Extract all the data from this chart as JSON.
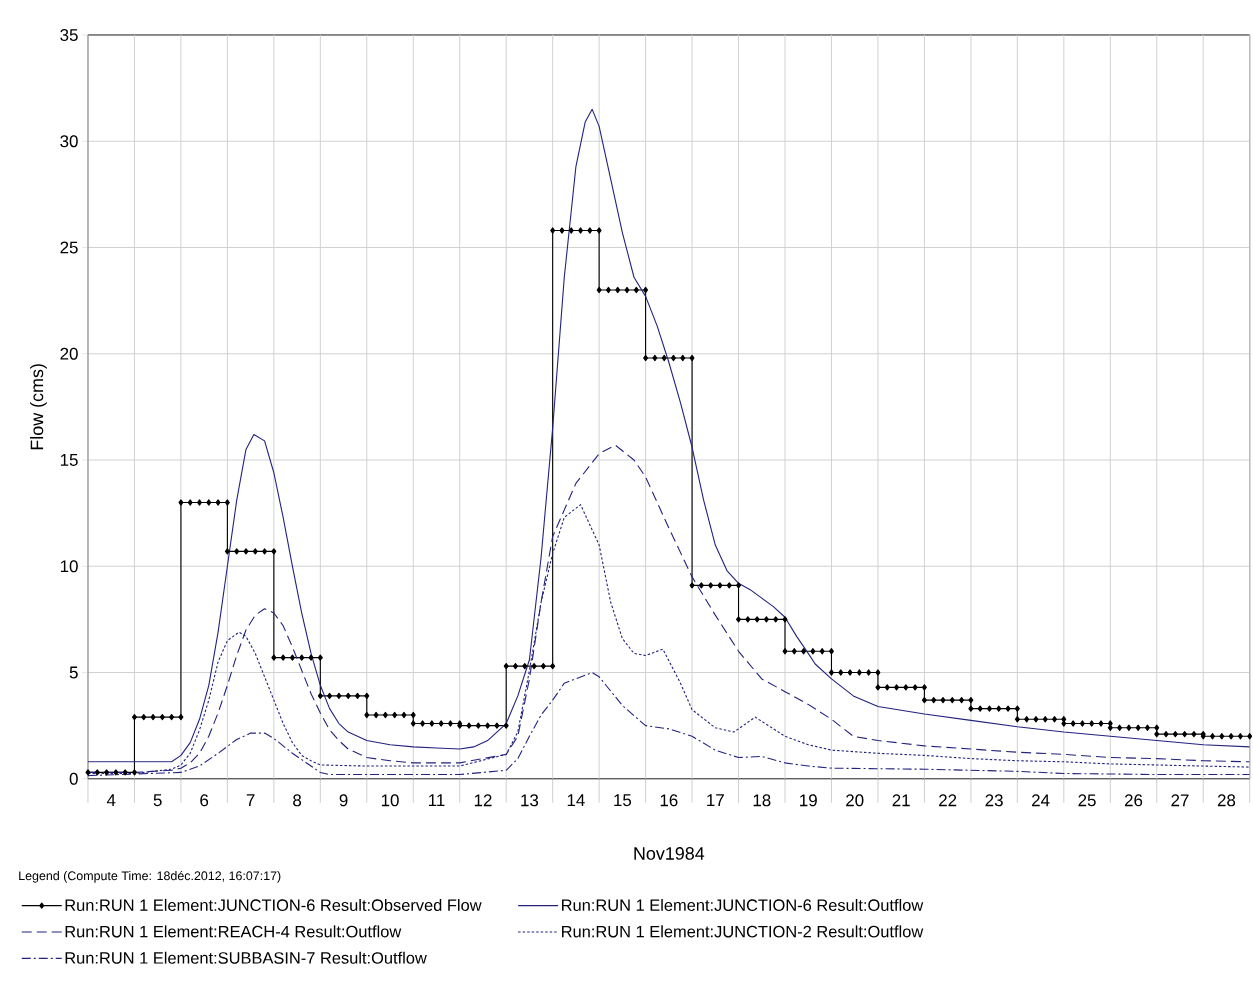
{
  "chart_data": {
    "type": "line",
    "xlabel": "Nov1984",
    "ylabel": "Flow (cms)",
    "legend_title": "Legend (Compute Time: 18déc.2012, 16:07:17)",
    "xlim": [
      4,
      29
    ],
    "ylim": [
      0,
      35
    ],
    "yticks": [
      0,
      5,
      10,
      15,
      20,
      25,
      30,
      35
    ],
    "xticks": [
      {
        "value": 4,
        "label": null
      },
      {
        "value": 4.5,
        "label": "4"
      },
      {
        "value": 5,
        "label": null
      },
      {
        "value": 5.5,
        "label": "5"
      },
      {
        "value": 6,
        "label": null
      },
      {
        "value": 6.5,
        "label": "6"
      },
      {
        "value": 7,
        "label": null
      },
      {
        "value": 7.5,
        "label": "7"
      },
      {
        "value": 8,
        "label": null
      },
      {
        "value": 8.5,
        "label": "8"
      },
      {
        "value": 9,
        "label": null
      },
      {
        "value": 9.5,
        "label": "9"
      },
      {
        "value": 10,
        "label": null
      },
      {
        "value": 10.5,
        "label": "10"
      },
      {
        "value": 11,
        "label": null
      },
      {
        "value": 11.5,
        "label": "11"
      },
      {
        "value": 12,
        "label": null
      },
      {
        "value": 12.5,
        "label": "12"
      },
      {
        "value": 13,
        "label": null
      },
      {
        "value": 13.5,
        "label": "13"
      },
      {
        "value": 14,
        "label": null
      },
      {
        "value": 14.5,
        "label": "14"
      },
      {
        "value": 15,
        "label": null
      },
      {
        "value": 15.5,
        "label": "15"
      },
      {
        "value": 16,
        "label": null
      },
      {
        "value": 16.5,
        "label": "16"
      },
      {
        "value": 17,
        "label": null
      },
      {
        "value": 17.5,
        "label": "17"
      },
      {
        "value": 18,
        "label": null
      },
      {
        "value": 18.5,
        "label": "18"
      },
      {
        "value": 19,
        "label": null
      },
      {
        "value": 19.5,
        "label": "19"
      },
      {
        "value": 20,
        "label": null
      },
      {
        "value": 20.5,
        "label": "20"
      },
      {
        "value": 21,
        "label": null
      },
      {
        "value": 21.5,
        "label": "21"
      },
      {
        "value": 22,
        "label": null
      },
      {
        "value": 22.5,
        "label": "22"
      },
      {
        "value": 23,
        "label": null
      },
      {
        "value": 23.5,
        "label": "23"
      },
      {
        "value": 24,
        "label": null
      },
      {
        "value": 24.5,
        "label": "24"
      },
      {
        "value": 25,
        "label": null
      },
      {
        "value": 25.5,
        "label": "25"
      },
      {
        "value": 26,
        "label": null
      },
      {
        "value": 26.5,
        "label": "26"
      },
      {
        "value": 27,
        "label": null
      },
      {
        "value": 27.5,
        "label": "27"
      },
      {
        "value": 28,
        "label": null
      },
      {
        "value": 28.5,
        "label": "28"
      },
      {
        "value": 29,
        "label": null
      }
    ],
    "grid": true,
    "legend": "bottom",
    "series": [
      {
        "name": "Run:RUN 1 Element:JUNCTION-6 Result:Observed Flow",
        "color": "#000000",
        "marker": "diamond",
        "line_style": "solid",
        "x": [
          4,
          4.2,
          4.4,
          4.6,
          4.8,
          5,
          5,
          5.2,
          5.4,
          5.6,
          5.8,
          6,
          6,
          6.2,
          6.4,
          6.6,
          6.8,
          7,
          7,
          7.2,
          7.4,
          7.6,
          7.8,
          8,
          8,
          8.2,
          8.4,
          8.6,
          8.8,
          9,
          9,
          9.2,
          9.4,
          9.6,
          9.8,
          10,
          10,
          10.2,
          10.4,
          10.6,
          10.8,
          11,
          11,
          11.2,
          11.4,
          11.6,
          11.8,
          12,
          12,
          12.2,
          12.4,
          12.6,
          12.8,
          13,
          13,
          13.2,
          13.4,
          13.6,
          13.8,
          14,
          14,
          14.2,
          14.4,
          14.6,
          14.8,
          15,
          15,
          15.2,
          15.4,
          15.6,
          15.8,
          16,
          16,
          16.2,
          16.4,
          16.6,
          16.8,
          17,
          17,
          17.2,
          17.4,
          17.6,
          17.8,
          18,
          18,
          18.2,
          18.4,
          18.6,
          18.8,
          19,
          19,
          19.2,
          19.4,
          19.6,
          19.8,
          20,
          20,
          20.2,
          20.4,
          20.6,
          20.8,
          21,
          21,
          21.2,
          21.4,
          21.6,
          21.8,
          22,
          22,
          22.2,
          22.4,
          22.6,
          22.8,
          23,
          23,
          23.2,
          23.4,
          23.6,
          23.8,
          24,
          24,
          24.2,
          24.4,
          24.6,
          24.8,
          25,
          25,
          25.2,
          25.4,
          25.6,
          25.8,
          26,
          26,
          26.2,
          26.4,
          26.6,
          26.8,
          27,
          27,
          27.2,
          27.4,
          27.6,
          27.8,
          28,
          28,
          28.2,
          28.4,
          28.6,
          28.8,
          29
        ],
        "values": [
          0.3,
          0.3,
          0.3,
          0.3,
          0.3,
          0.3,
          2.9,
          2.9,
          2.9,
          2.9,
          2.9,
          2.9,
          13.0,
          13.0,
          13.0,
          13.0,
          13.0,
          13.0,
          10.7,
          10.7,
          10.7,
          10.7,
          10.7,
          10.7,
          5.7,
          5.7,
          5.7,
          5.7,
          5.7,
          5.7,
          3.9,
          3.9,
          3.9,
          3.9,
          3.9,
          3.9,
          3.0,
          3.0,
          3.0,
          3.0,
          3.0,
          3.0,
          2.6,
          2.6,
          2.6,
          2.6,
          2.6,
          2.6,
          2.5,
          2.5,
          2.5,
          2.5,
          2.5,
          2.5,
          5.3,
          5.3,
          5.3,
          5.3,
          5.3,
          5.3,
          25.8,
          25.8,
          25.8,
          25.8,
          25.8,
          25.8,
          23.0,
          23.0,
          23.0,
          23.0,
          23.0,
          23.0,
          19.8,
          19.8,
          19.8,
          19.8,
          19.8,
          19.8,
          9.1,
          9.1,
          9.1,
          9.1,
          9.1,
          9.1,
          7.5,
          7.5,
          7.5,
          7.5,
          7.5,
          7.5,
          6.0,
          6.0,
          6.0,
          6.0,
          6.0,
          6.0,
          5.0,
          5.0,
          5.0,
          5.0,
          5.0,
          5.0,
          4.3,
          4.3,
          4.3,
          4.3,
          4.3,
          4.3,
          3.7,
          3.7,
          3.7,
          3.7,
          3.7,
          3.7,
          3.3,
          3.3,
          3.3,
          3.3,
          3.3,
          3.3,
          2.8,
          2.8,
          2.8,
          2.8,
          2.8,
          2.8,
          2.6,
          2.6,
          2.6,
          2.6,
          2.6,
          2.6,
          2.4,
          2.4,
          2.4,
          2.4,
          2.4,
          2.4,
          2.1,
          2.1,
          2.1,
          2.1,
          2.1,
          2.1,
          2.0,
          2.0,
          2.0,
          2.0,
          2.0,
          2.0
        ]
      },
      {
        "name": "Run:RUN 1 Element:JUNCTION-6 Result:Outflow",
        "color": "#22227f",
        "line_style": "solid",
        "x": [
          4,
          5,
          5.8,
          6,
          6.2,
          6.4,
          6.6,
          6.8,
          7,
          7.2,
          7.4,
          7.57,
          7.8,
          8,
          8.2,
          8.4,
          8.6,
          8.8,
          9,
          9.2,
          9.4,
          9.6,
          10,
          10.5,
          11,
          11.5,
          12,
          12.3,
          12.6,
          13,
          13.25,
          13.5,
          13.75,
          14,
          14.25,
          14.5,
          14.7,
          14.85,
          15,
          15.25,
          15.5,
          15.75,
          16,
          16.25,
          16.5,
          16.75,
          17,
          17.25,
          17.5,
          17.75,
          18,
          18.25,
          18.5,
          18.75,
          19,
          19.25,
          19.5,
          19.65,
          20,
          20.47,
          21,
          22,
          23,
          24,
          25,
          26,
          27,
          28,
          29
        ],
        "values": [
          0.8,
          0.8,
          0.8,
          1.1,
          1.7,
          2.8,
          4.4,
          6.9,
          10.0,
          13.1,
          15.5,
          16.2,
          15.9,
          14.4,
          12.3,
          10.0,
          7.8,
          5.9,
          4.4,
          3.3,
          2.6,
          2.2,
          1.8,
          1.6,
          1.5,
          1.45,
          1.4,
          1.5,
          1.8,
          2.6,
          3.9,
          5.6,
          10.4,
          16.5,
          23.6,
          28.8,
          30.9,
          31.5,
          30.7,
          28.2,
          25.7,
          23.6,
          22.7,
          21.3,
          19.6,
          17.7,
          15.6,
          13.1,
          11.0,
          9.8,
          9.2,
          8.9,
          8.5,
          8.1,
          7.6,
          6.7,
          5.9,
          5.4,
          4.7,
          3.9,
          3.4,
          3.05,
          2.75,
          2.45,
          2.2,
          2.0,
          1.8,
          1.6,
          1.5
        ]
      },
      {
        "name": "Run:RUN 1 Element:REACH-4 Result:Outflow",
        "color": "#22227f",
        "line_style": "dashed",
        "x": [
          4,
          5,
          5.8,
          6,
          6.2,
          6.4,
          6.6,
          6.8,
          7,
          7.2,
          7.4,
          7.6,
          7.8,
          8,
          8.2,
          8.4,
          8.6,
          8.8,
          9,
          9.2,
          9.4,
          9.6,
          10,
          10.5,
          11,
          12,
          13,
          13.25,
          13.5,
          13.75,
          14,
          14.5,
          15,
          15.35,
          15.75,
          16,
          16.5,
          17,
          17.5,
          18,
          18.5,
          19,
          19.5,
          20,
          20.47,
          21,
          22,
          23,
          24,
          25,
          26,
          27,
          28,
          29
        ],
        "values": [
          0.3,
          0.3,
          0.4,
          0.5,
          0.75,
          1.2,
          2.0,
          3.1,
          4.4,
          5.8,
          7.0,
          7.7,
          8.0,
          7.8,
          7.2,
          6.2,
          5.1,
          4.0,
          3.1,
          2.3,
          1.8,
          1.4,
          1.0,
          0.85,
          0.75,
          0.75,
          1.15,
          2.0,
          4.7,
          8.3,
          11.4,
          13.9,
          15.3,
          15.7,
          15.0,
          14.2,
          11.8,
          9.5,
          7.7,
          6.0,
          4.7,
          4.1,
          3.5,
          2.8,
          2.0,
          1.8,
          1.55,
          1.4,
          1.25,
          1.15,
          1.0,
          0.95,
          0.85,
          0.8
        ]
      },
      {
        "name": "Run:RUN 1 Element:JUNCTION-2 Result:Outflow",
        "color": "#22227f",
        "line_style": "dotted",
        "x": [
          4,
          5,
          5.8,
          6,
          6.2,
          6.4,
          6.6,
          6.8,
          7,
          7.25,
          7.4,
          7.6,
          7.8,
          8,
          8.2,
          8.4,
          8.6,
          8.8,
          9,
          10,
          12,
          13,
          13.25,
          13.5,
          13.75,
          14,
          14.25,
          14.6,
          15,
          15.25,
          15.5,
          15.75,
          16,
          16.37,
          16.75,
          17,
          17.5,
          17.9,
          18.36,
          19,
          19.5,
          20,
          21,
          22,
          23,
          24,
          25,
          26,
          27,
          28,
          29
        ],
        "values": [
          0.25,
          0.25,
          0.45,
          0.65,
          1.2,
          2.3,
          3.7,
          5.5,
          6.5,
          6.9,
          6.7,
          5.9,
          4.8,
          3.7,
          2.6,
          1.7,
          1.1,
          0.85,
          0.65,
          0.6,
          0.6,
          1.15,
          2.2,
          5.1,
          8.3,
          10.6,
          12.3,
          12.9,
          11.0,
          8.3,
          6.6,
          5.9,
          5.8,
          6.1,
          4.5,
          3.25,
          2.4,
          2.2,
          2.9,
          2.0,
          1.6,
          1.35,
          1.2,
          1.1,
          0.95,
          0.85,
          0.8,
          0.7,
          0.65,
          0.6,
          0.55
        ]
      },
      {
        "name": "Run:RUN 1 Element:SUBBASIN-7 Result:Outflow",
        "color": "#22227f",
        "line_style": "dashdot",
        "x": [
          4,
          6,
          6.4,
          6.8,
          7.2,
          7.5,
          7.8,
          8,
          8.4,
          8.8,
          9,
          9.2,
          12,
          13,
          13.25,
          13.5,
          13.75,
          14,
          14.25,
          14.85,
          15,
          15.5,
          16,
          16.5,
          17,
          17.5,
          18,
          18.5,
          19,
          19.5,
          20,
          22,
          23,
          24,
          25,
          27,
          29
        ],
        "values": [
          0.15,
          0.3,
          0.6,
          1.2,
          1.85,
          2.15,
          2.15,
          1.9,
          1.2,
          0.6,
          0.3,
          0.2,
          0.2,
          0.4,
          0.95,
          2.0,
          3.0,
          3.7,
          4.5,
          5.0,
          4.8,
          3.45,
          2.5,
          2.35,
          2.0,
          1.35,
          1.0,
          1.05,
          0.75,
          0.6,
          0.5,
          0.45,
          0.4,
          0.35,
          0.25,
          0.2,
          0.2
        ]
      }
    ]
  }
}
